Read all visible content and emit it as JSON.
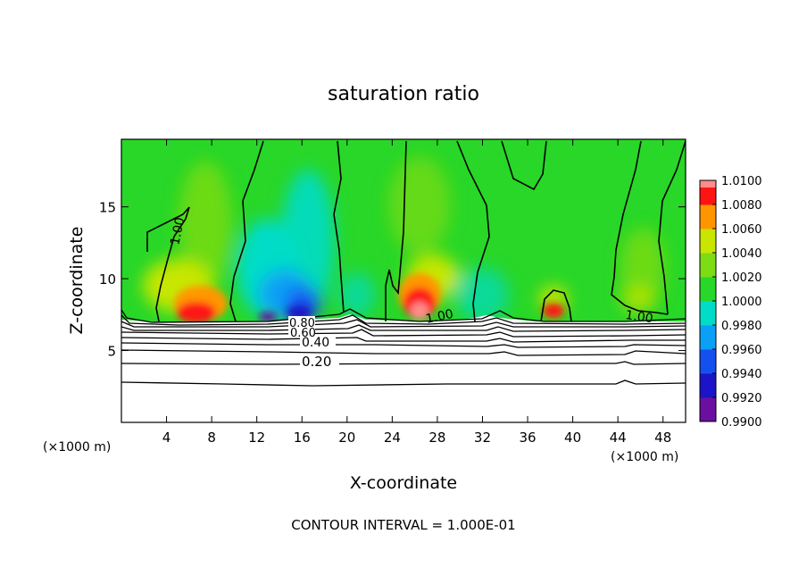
{
  "chart_data": {
    "type": "heatmap",
    "title": "saturation ratio",
    "xlabel": "X-coordinate",
    "ylabel": "Z-coordinate",
    "x_unit_left": "(×1000 m)",
    "x_unit_right": "(×1000 m)",
    "footer": "CONTOUR INTERVAL = 1.000E-01",
    "xlim": [
      0,
      50
    ],
    "ylim": [
      0,
      19.7
    ],
    "x_ticks": [
      4,
      8,
      12,
      16,
      20,
      24,
      28,
      32,
      36,
      40,
      44,
      48
    ],
    "y_ticks": [
      5,
      10,
      15
    ],
    "colorbar": {
      "levels": [
        "0.9900",
        "0.9920",
        "0.9940",
        "0.9960",
        "0.9980",
        "1.0000",
        "1.0020",
        "1.0040",
        "1.0060",
        "1.0080",
        "1.0100"
      ],
      "colors": [
        "#6a0fa0",
        "#1c14c8",
        "#1450f0",
        "#0aa0f5",
        "#00dcc8",
        "#28d728",
        "#7ddc14",
        "#c8e600",
        "#ff9600",
        "#ff1414",
        "#ff8c8c"
      ]
    },
    "contour_labels": [
      {
        "text": "1.00",
        "x": 4.8,
        "z": 12.5
      },
      {
        "text": "1.00",
        "x": 27.0,
        "z": 7.7
      },
      {
        "text": "1.00",
        "x": 45.6,
        "z": 7.8
      },
      {
        "text": "0.80",
        "x": 16.5,
        "z": 7.1
      },
      {
        "text": "0.60",
        "x": 16.8,
        "z": 6.6
      },
      {
        "text": "0.40",
        "x": 17.0,
        "z": 5.8
      },
      {
        "text": "0.20",
        "x": 17.8,
        "z": 4.2
      }
    ],
    "features": {
      "green_background": "1.0000",
      "dry_layer_top_z": 7.2,
      "warm_maxima_x": [
        6.5,
        26.5,
        38.0,
        46.0
      ],
      "cool_minima_x": [
        15.0,
        20.0,
        34.0
      ]
    }
  }
}
